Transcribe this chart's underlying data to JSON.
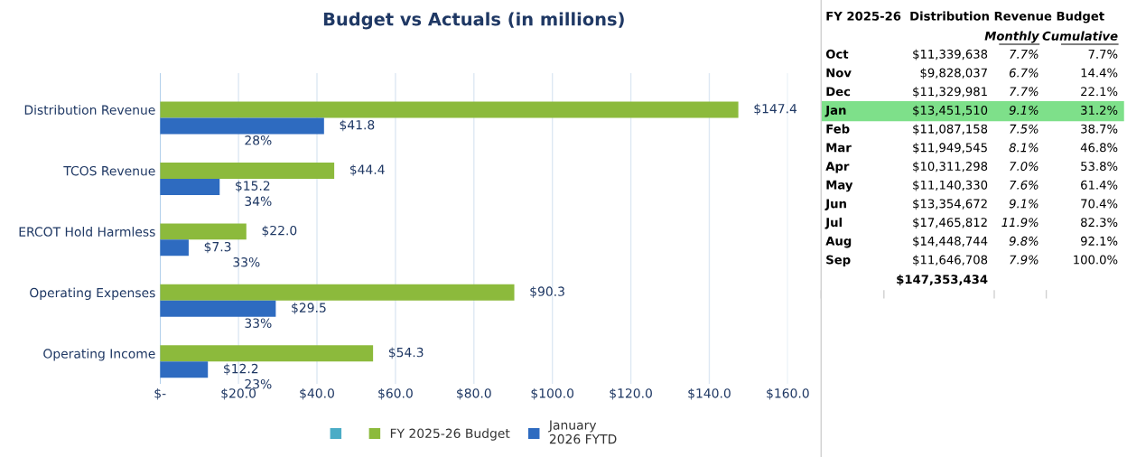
{
  "chart_data": [
    {
      "type": "bar",
      "orientation": "horizontal",
      "title": "Budget vs Actuals (in millions)",
      "categories": [
        "Distribution Revenue",
        "TCOS Revenue",
        "ERCOT Hold Harmless",
        "Operating Expenses",
        "Operating Income"
      ],
      "series": [
        {
          "color": "#4bacc6",
          "values": [
            0,
            0,
            0,
            0,
            0
          ]
        },
        {
          "name": "FY 2025-26 Budget",
          "color": "#8cba3c",
          "values": [
            147.4,
            44.4,
            22.0,
            90.3,
            54.3
          ],
          "value_labels": [
            "$147.4",
            "$44.4",
            "$22.0",
            "$90.3",
            "$54.3"
          ]
        },
        {
          "name": "January\n2026 FYTD",
          "color": "#2e6bc0",
          "values": [
            41.8,
            15.2,
            7.3,
            29.5,
            12.2
          ],
          "value_labels": [
            "$41.8",
            "$15.2",
            "$7.3",
            "$29.5",
            "$12.2"
          ]
        }
      ],
      "xlim": [
        0,
        160
      ],
      "xticks": [
        {
          "value": 0,
          "label": "$-"
        },
        {
          "value": 20,
          "label": "$20.0"
        },
        {
          "value": 40,
          "label": "$40.0"
        },
        {
          "value": 60,
          "label": "$60.0"
        },
        {
          "value": 80,
          "label": "$80.0"
        },
        {
          "value": 100,
          "label": "$100.0"
        },
        {
          "value": 120,
          "label": "$120.0"
        },
        {
          "value": 140,
          "label": "$140.0"
        },
        {
          "value": 160,
          "label": "$160.0"
        }
      ],
      "annotations": [
        "28%",
        "34%",
        "33%",
        "33%",
        "23%"
      ],
      "grid": "x",
      "legend": "bottom"
    },
    {
      "type": "other",
      "title": "FY 2025-26  Distribution Revenue Budget",
      "categories": [
        null,
        "Monthly",
        "Cumulative"
      ],
      "y_categories": [
        "Oct",
        "Nov",
        "Dec",
        "Jan",
        "Feb",
        "Mar",
        "Apr",
        "May",
        "Jun",
        "Jul",
        "Aug",
        "Sep"
      ],
      "cell_labels": [
        [
          "$11,339,638",
          "7.7%",
          "7.7%"
        ],
        [
          "$9,828,037",
          "6.7%",
          "14.4%"
        ],
        [
          "$11,329,981",
          "7.7%",
          "22.1%"
        ],
        [
          "$13,451,510",
          "9.1%",
          "31.2%"
        ],
        [
          "$11,087,158",
          "7.5%",
          "38.7%"
        ],
        [
          "$11,949,545",
          "8.1%",
          "46.8%"
        ],
        [
          "$10,311,298",
          "7.0%",
          "53.8%"
        ],
        [
          "$11,140,330",
          "7.6%",
          "61.4%"
        ],
        [
          "$13,354,672",
          "9.1%",
          "70.4%"
        ],
        [
          "$17,465,812",
          "11.9%",
          "82.3%"
        ],
        [
          "$14,448,744",
          "9.8%",
          "92.1%"
        ],
        [
          "$11,646,708",
          "7.9%",
          "100.0%"
        ]
      ],
      "totals": [
        "$147,353,434"
      ],
      "colors": [
        null,
        null,
        null,
        "#7ee08a",
        null,
        null,
        null,
        null,
        null,
        null,
        null,
        null
      ]
    }
  ]
}
